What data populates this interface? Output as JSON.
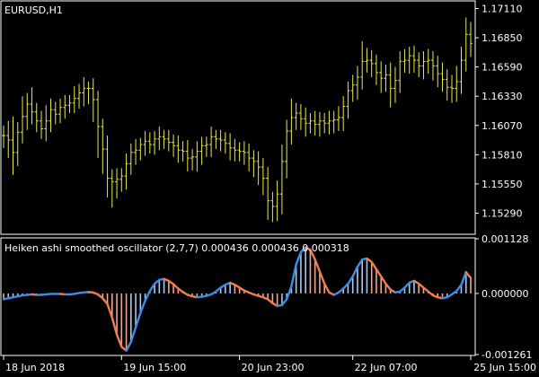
{
  "colors": {
    "background": "#000000",
    "frame": "#ffffff",
    "candles": "#e8e850",
    "hist_up": "#a9c8ef",
    "hist_down": "#f1a58b",
    "line_up": "#3a8ee6",
    "line_down": "#f07e4f",
    "text": "#ffffff"
  },
  "chart_data": [
    {
      "type": "ohlc",
      "title": "EURUSD,H1",
      "ylim": [
        1.1511,
        1.1717
      ],
      "y_ticks": [
        "1.17110",
        "1.16850",
        "1.16590",
        "1.16330",
        "1.16070",
        "1.15810",
        "1.15550",
        "1.15290"
      ],
      "close": [
        1.1598,
        1.1594,
        1.1583,
        1.1601,
        1.1615,
        1.1626,
        1.1619,
        1.1611,
        1.1604,
        1.1611,
        1.1621,
        1.1617,
        1.1623,
        1.1625,
        1.1627,
        1.1631,
        1.1636,
        1.164,
        1.164,
        1.163,
        1.1606,
        1.1586,
        1.156,
        1.1557,
        1.1559,
        1.1562,
        1.1573,
        1.1583,
        1.1585,
        1.159,
        1.1593,
        1.159,
        1.1595,
        1.1597,
        1.1595,
        1.1592,
        1.1589,
        1.1585,
        1.1584,
        1.1578,
        1.1579,
        1.1584,
        1.1589,
        1.159,
        1.1597,
        1.1595,
        1.1594,
        1.1591,
        1.1587,
        1.1585,
        1.1584,
        1.1583,
        1.1578,
        1.1575,
        1.157,
        1.156,
        1.154,
        1.1535,
        1.1546,
        1.1575,
        1.1602,
        1.1614,
        1.1618,
        1.1613,
        1.1609,
        1.1611,
        1.1608,
        1.1611,
        1.1609,
        1.1611,
        1.1612,
        1.1614,
        1.1624,
        1.1638,
        1.1643,
        1.165,
        1.1664,
        1.1665,
        1.1662,
        1.1654,
        1.1649,
        1.1652,
        1.164,
        1.1647,
        1.1664,
        1.1665,
        1.1669,
        1.1665,
        1.166,
        1.1664,
        1.1665,
        1.166,
        1.1653,
        1.1648,
        1.1641,
        1.164,
        1.1646,
        1.1665,
        1.1688,
        1.168
      ],
      "high_offset": [
        0.0009,
        0.0013,
        0.0021,
        0.0009,
        0.0018,
        0.001,
        0.0015,
        0.0008,
        0.0009,
        0.0014,
        0.001,
        0.0007,
        0.0008,
        0.0009,
        0.0007,
        0.0011,
        0.0008,
        0.001,
        0.0006,
        0.0009,
        0.0008,
        0.0007,
        0.0012,
        0.0008,
        0.001,
        0.0007,
        0.0009,
        0.0008,
        0.001,
        0.0006,
        0.0009,
        0.0008,
        0.0007,
        0.0009,
        0.0006,
        0.0008,
        0.0007,
        0.0009,
        0.0008,
        0.001,
        0.0007,
        0.0009,
        0.0008,
        0.0007,
        0.0009,
        0.0006,
        0.0008,
        0.0007,
        0.0009,
        0.0008,
        0.0007,
        0.0009,
        0.0008,
        0.0007,
        0.0009,
        0.0008,
        0.001,
        0.0008,
        0.0012,
        0.0015,
        0.001,
        0.0017,
        0.0009,
        0.0008,
        0.001,
        0.0007,
        0.0009,
        0.0008,
        0.0007,
        0.0009,
        0.0008,
        0.001,
        0.0009,
        0.0008,
        0.0009,
        0.001,
        0.0018,
        0.0011,
        0.0009,
        0.0008,
        0.001,
        0.0009,
        0.0011,
        0.0012,
        0.0009,
        0.001,
        0.0008,
        0.0009,
        0.0007,
        0.0009,
        0.001,
        0.0008,
        0.0009,
        0.001,
        0.0009,
        0.0011,
        0.0014,
        0.0012,
        0.0015,
        0.0011
      ],
      "low_offset": [
        0.0011,
        0.0016,
        0.002,
        0.0012,
        0.001,
        0.0012,
        0.0011,
        0.001,
        0.0009,
        0.0011,
        0.001,
        0.0009,
        0.0008,
        0.001,
        0.0007,
        0.0009,
        0.0009,
        0.0012,
        0.0014,
        0.002,
        0.0028,
        0.0022,
        0.0017,
        0.0023,
        0.0015,
        0.0011,
        0.0012,
        0.001,
        0.0011,
        0.0009,
        0.001,
        0.0008,
        0.0009,
        0.001,
        0.0009,
        0.0008,
        0.001,
        0.0011,
        0.0009,
        0.0012,
        0.0011,
        0.0013,
        0.0012,
        0.001,
        0.0011,
        0.0009,
        0.001,
        0.0009,
        0.0011,
        0.001,
        0.0009,
        0.0011,
        0.0012,
        0.0014,
        0.0016,
        0.0015,
        0.0017,
        0.0014,
        0.0013,
        0.0018,
        0.0015,
        0.0012,
        0.0011,
        0.001,
        0.0012,
        0.0009,
        0.001,
        0.0011,
        0.0009,
        0.001,
        0.0011,
        0.001,
        0.0012,
        0.0011,
        0.001,
        0.0013,
        0.0011,
        0.001,
        0.0012,
        0.0011,
        0.0013,
        0.0012,
        0.0017,
        0.0013,
        0.0011,
        0.001,
        0.0012,
        0.0011,
        0.001,
        0.0012,
        0.0011,
        0.0013,
        0.0012,
        0.0011,
        0.0012,
        0.0013,
        0.0012,
        0.0011,
        0.001,
        0.0012
      ]
    },
    {
      "type": "oscillator",
      "title": "Heiken ashi smoothed oscillator (2,7,7) 0.000436 0.000436 0.000318",
      "ylim": [
        -0.001261,
        0.001128
      ],
      "y_ticks": [
        "0.001128",
        "0.000000",
        "-0.001261"
      ],
      "values": [
        -0.00012,
        -0.0001,
        -8e-05,
        -6e-05,
        -4e-05,
        -3e-05,
        -2e-05,
        -3e-05,
        -3e-05,
        -2e-05,
        -1e-05,
        -1e-05,
        -1e-05,
        -2e-05,
        -2e-05,
        -1e-05,
        1e-05,
        2e-05,
        3e-05,
        2e-05,
        -2e-05,
        -0.0001,
        -0.00022,
        -0.0005,
        -0.00085,
        -0.0011,
        -0.00118,
        -0.001,
        -0.0007,
        -0.0004,
        -0.00015,
        5e-05,
        0.0002,
        0.00028,
        0.0003,
        0.00026,
        0.00019,
        0.0001,
        3e-05,
        -3e-05,
        -6e-05,
        -8e-05,
        -7e-05,
        -5e-05,
        -2e-05,
        4e-05,
        0.00012,
        0.00018,
        0.00022,
        0.00018,
        0.00012,
        6e-05,
        2e-05,
        -2e-05,
        -5e-05,
        -8e-05,
        -0.00012,
        -0.0002,
        -0.00026,
        -0.00024,
        -0.00012,
        0.00015,
        0.0006,
        0.00085,
        0.00095,
        0.0009,
        0.0007,
        0.00045,
        0.0002,
        2e-05,
        -3e-05,
        2e-05,
        0.0001,
        0.0002,
        0.00035,
        0.00055,
        0.0007,
        0.00072,
        0.00065,
        0.0005,
        0.00035,
        0.0002,
        8e-05,
        2e-05,
        4e-05,
        0.00012,
        0.00022,
        0.00026,
        0.0002,
        0.00012,
        4e-05,
        -4e-05,
        -8e-05,
        -0.0001,
        -8e-05,
        -2e-05,
        5e-05,
        0.00018,
        0.00044,
        0.00032
      ]
    }
  ],
  "x_axis": {
    "labels": [
      "18 Jun 2018",
      "19 Jun 15:00",
      "20 Jun 23:00",
      "22 Jun 07:00",
      "25 Jun 15:00"
    ]
  }
}
